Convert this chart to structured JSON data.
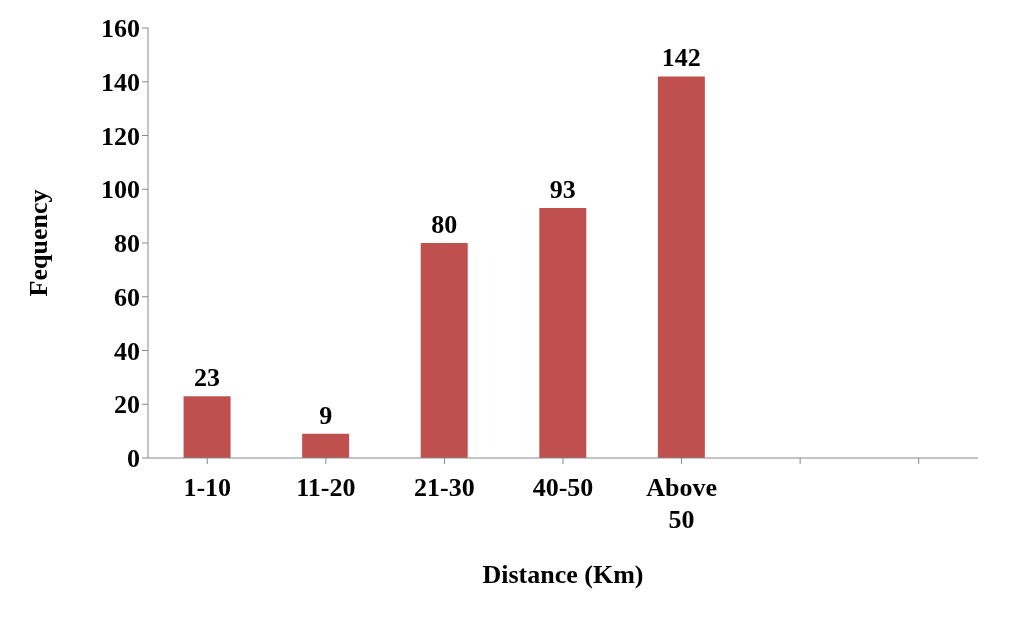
{
  "chart_data": {
    "type": "bar",
    "xlabel": "Distance (Km)",
    "ylabel": "Fequency",
    "categories": [
      "1-10",
      "11-20",
      "21-30",
      "40-50",
      "Above 50",
      null,
      null
    ],
    "values": [
      23,
      9,
      80,
      93,
      142,
      null,
      null
    ],
    "color": "#c0504d",
    "ylim": [
      0,
      160
    ],
    "yticks": [
      0,
      20,
      40,
      60,
      80,
      100,
      120,
      140,
      160
    ],
    "data_labels": true
  }
}
